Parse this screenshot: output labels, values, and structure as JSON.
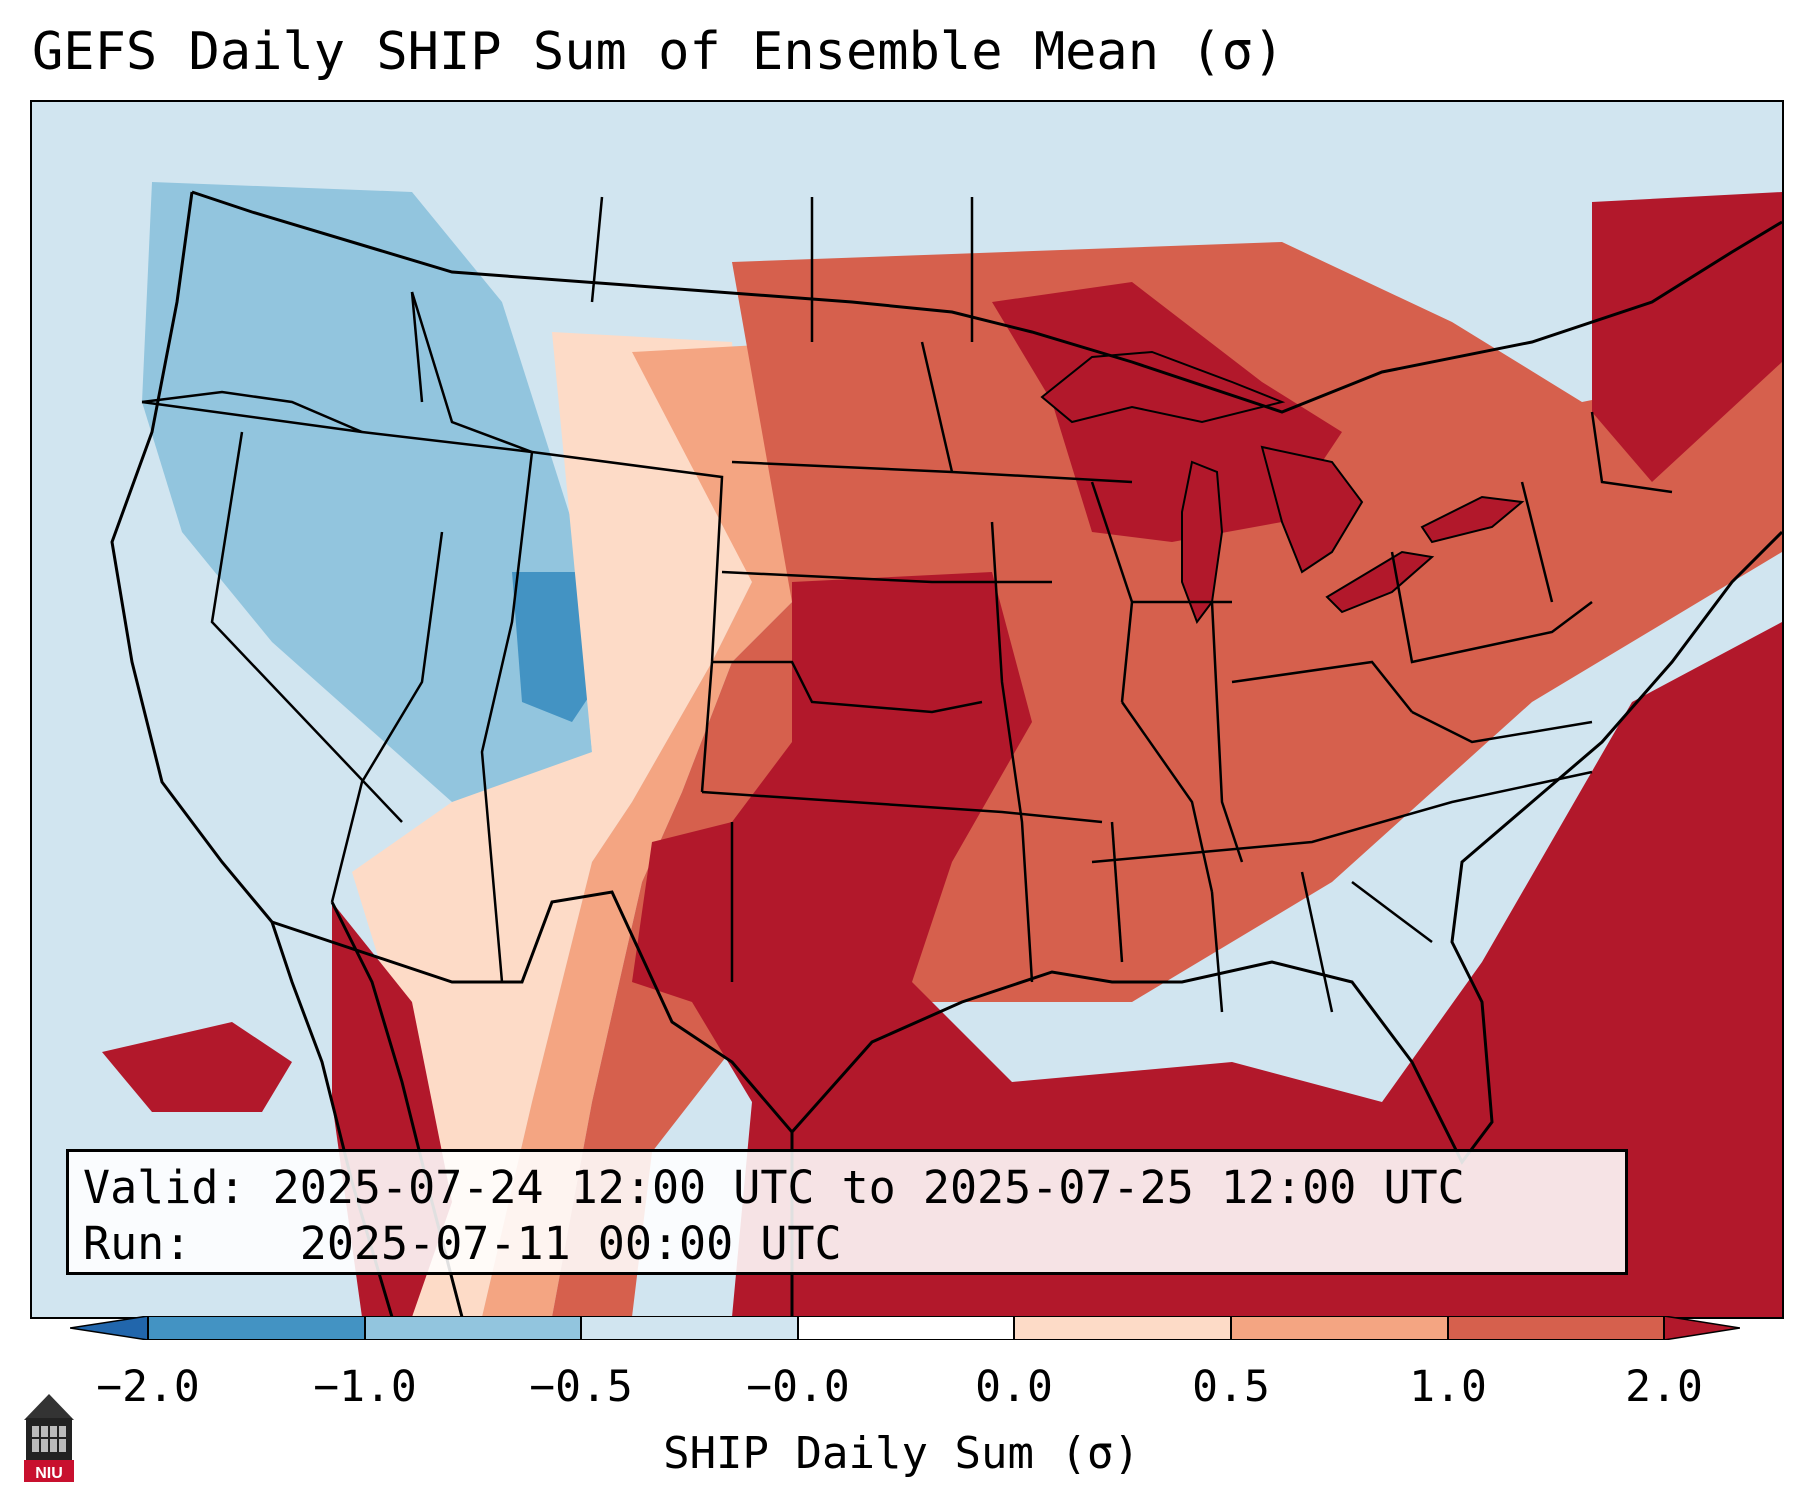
{
  "title": "GEFS Daily SHIP Sum of Ensemble Mean (σ)",
  "info": {
    "valid_label": "Valid:",
    "valid_value": "2025-07-24 12:00 UTC to 2025-07-25 12:00 UTC",
    "run_label": "Run:",
    "run_value": "2025-07-11 00:00 UTC"
  },
  "colorbar": {
    "label": "SHIP Daily Sum (σ)",
    "ticks": [
      "−2.0",
      "−1.0",
      "−0.5",
      "−0.0",
      "0.0",
      "0.5",
      "1.0",
      "2.0"
    ],
    "colors": [
      "#2166ac",
      "#4393c3",
      "#92c5de",
      "#d1e5f0",
      "#fddbc7",
      "#f4a582",
      "#d6604d",
      "#b2182b"
    ],
    "extend": "both"
  },
  "logo": {
    "text": "NIU"
  },
  "map": {
    "region": "Contiguous United States",
    "field": "SHIP daily sum anomaly (σ)",
    "ocean_color": "#d1e5f0"
  }
}
